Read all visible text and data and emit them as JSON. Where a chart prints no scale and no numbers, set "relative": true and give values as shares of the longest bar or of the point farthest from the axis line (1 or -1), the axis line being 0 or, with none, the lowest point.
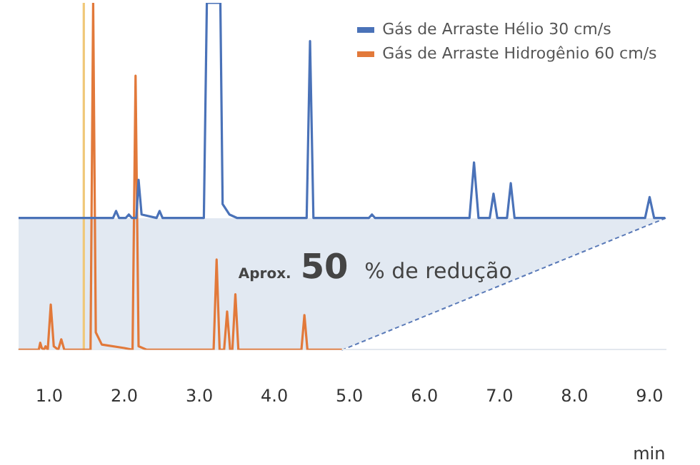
{
  "chart_data": {
    "type": "line",
    "relative": true,
    "xlabel": "min",
    "legend": "top right",
    "grid": false,
    "marker": "none",
    "line_style": "solid",
    "xticks": [
      {
        "value": 1,
        "label": "1.0"
      },
      {
        "value": 2,
        "label": "2.0"
      },
      {
        "value": 3,
        "label": "3.0"
      },
      {
        "value": 4,
        "label": "4.0"
      },
      {
        "value": 5,
        "label": "5.0"
      },
      {
        "value": 6,
        "label": "6.0"
      },
      {
        "value": 7,
        "label": "7.0"
      },
      {
        "value": 8,
        "label": "8.0"
      },
      {
        "value": 9,
        "label": "9.0"
      }
    ],
    "xlim": [
      0.59,
      9.21
    ],
    "tick_labels": "x",
    "series": [
      {
        "name": "Gás de Arraste Hélio 30 cm/s",
        "color": "#4a72b8",
        "x": [
          0.59,
          1.85,
          1.89,
          1.93,
          2.02,
          2.06,
          2.1,
          2.16,
          2.19,
          2.23,
          2.43,
          2.47,
          2.51,
          3.06,
          3.1,
          3.28,
          3.31,
          3.4,
          3.5,
          4.43,
          4.475,
          4.52,
          5.26,
          5.3,
          5.34,
          6.6,
          6.66,
          6.72,
          6.87,
          6.92,
          6.97,
          7.1,
          7.15,
          7.2,
          8.94,
          9.0,
          9.06,
          9.21
        ],
        "values": [
          0.38,
          0.38,
          0.4,
          0.38,
          0.38,
          0.39,
          0.38,
          0.38,
          0.49,
          0.39,
          0.38,
          0.4,
          0.38,
          0.38,
          1,
          1,
          0.42,
          0.39,
          0.38,
          0.38,
          0.89,
          0.38,
          0.38,
          0.39,
          0.38,
          0.38,
          0.54,
          0.38,
          0.38,
          0.45,
          0.38,
          0.38,
          0.48,
          0.38,
          0.38,
          0.44,
          0.38,
          0.38
        ]
      },
      {
        "name": "Gás de Arraste Hidrogênio 60 cm/s",
        "color": "#e2793a",
        "x": [
          0.59,
          0.86,
          0.88,
          0.9,
          0.93,
          0.95,
          0.98,
          1.02,
          1.06,
          1.12,
          1.16,
          1.2,
          1.55,
          1.585,
          1.62,
          1.7,
          2.0,
          2.11,
          2.15,
          2.19,
          2.3,
          3.19,
          3.23,
          3.27,
          3.33,
          3.37,
          3.41,
          3.44,
          3.48,
          3.52,
          4.36,
          4.4,
          4.44,
          4.9
        ],
        "values": [
          0,
          0,
          0.02,
          0.005,
          0,
          0.01,
          0,
          0.13,
          0.01,
          0,
          0.03,
          0,
          0,
          1,
          0.05,
          0.015,
          0.005,
          0,
          0.79,
          0.01,
          0,
          0,
          0.26,
          0,
          0,
          0.11,
          0,
          0,
          0.16,
          0,
          0,
          0.1,
          0,
          0
        ]
      }
    ],
    "ref_lines": [
      {
        "axis": "x",
        "value": 1.46,
        "color": "#f0c878"
      }
    ],
    "annotations": [
      "Aprox. 50 % de redução"
    ]
  }
}
